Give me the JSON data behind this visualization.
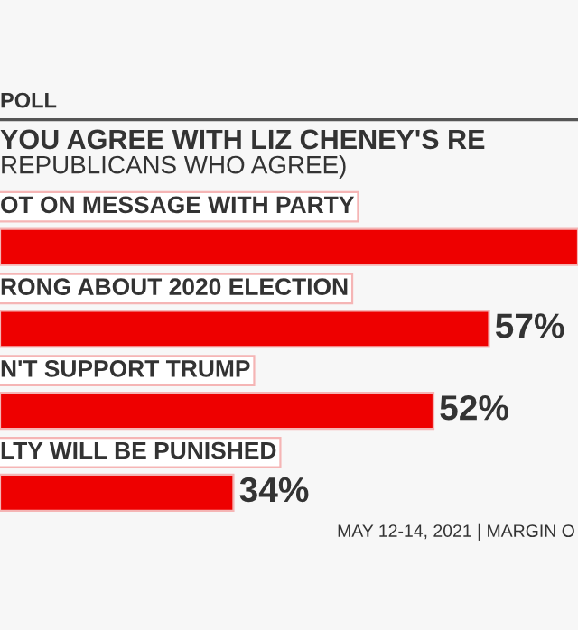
{
  "chart_data": {
    "type": "bar",
    "orientation": "horizontal",
    "title": "YOU AGREE WITH LIZ CHENEY'S RE",
    "subtitle": "REPUBLICANS WHO AGREE)",
    "categories": [
      "OT ON MESSAGE WITH PARTY",
      "RONG ABOUT 2020 ELECTION",
      "N'T SUPPORT TRUMP",
      "LTY WILL BE PUNISHED"
    ],
    "values": [
      65,
      57,
      52,
      34
    ],
    "value_labels": [
      null,
      "57%",
      "52%",
      "34%"
    ],
    "color": "#ee0000",
    "xlim": [
      13,
      65
    ],
    "annotations": [
      "POLL",
      "MAY 12-14, 2021 | MARGIN O"
    ]
  }
}
